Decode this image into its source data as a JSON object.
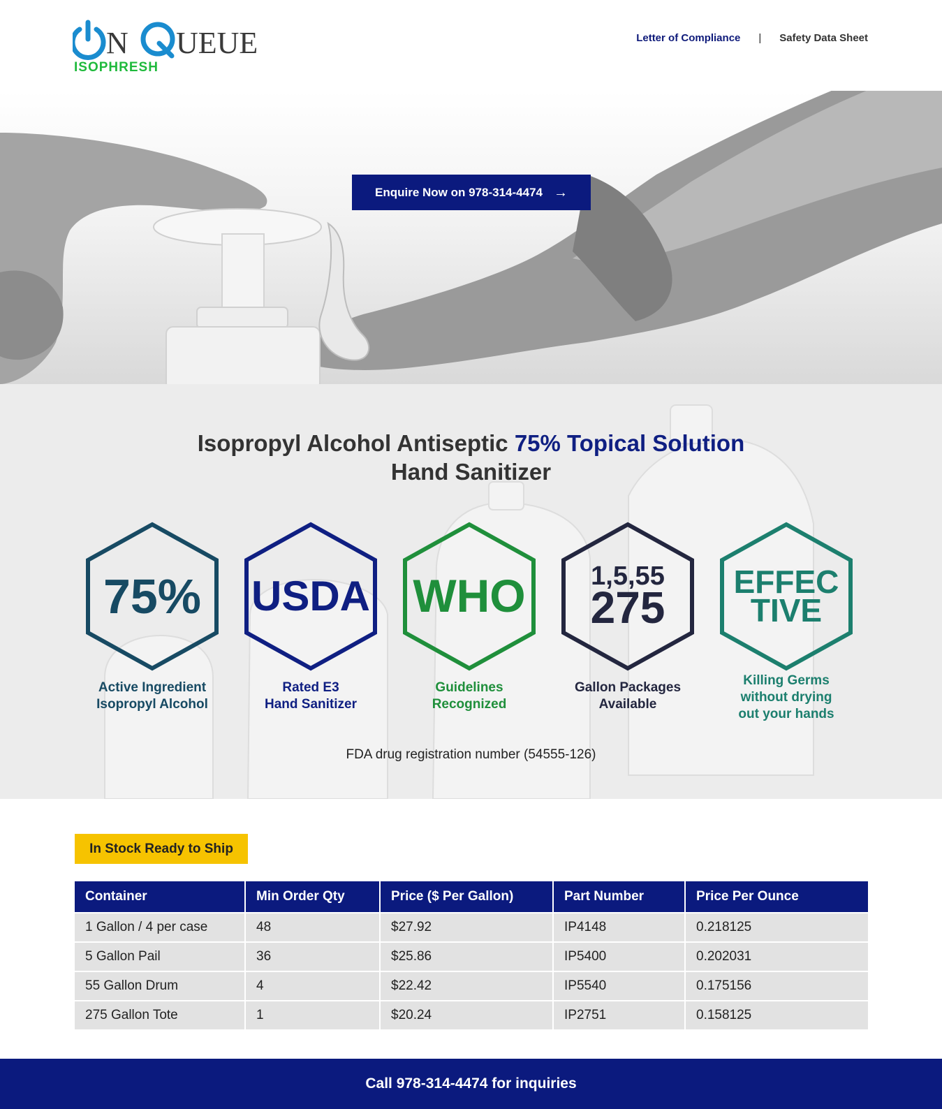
{
  "brand": {
    "logo_text": "ONQUEUE",
    "sub": "ISOPHRESH",
    "colors": {
      "blue": "#1a8ccf",
      "green": "#1fba3c",
      "navy": "#0b1a7e",
      "dark": "#3a3a3a"
    }
  },
  "nav": {
    "compliance": "Letter of Compliance",
    "separator": "|",
    "sds": "Safety Data Sheet"
  },
  "hero": {
    "cta_label": "Enquire Now on 978-314-4474",
    "cta_icon": "arrow-right-icon"
  },
  "headline": {
    "part1": "Isopropyl Alcohol Antiseptic ",
    "accent": "75% Topical Solution",
    "line2": "Hand Sanitizer"
  },
  "badges": [
    {
      "line1": "75%",
      "line2": "",
      "caption1": "Active Ingredient",
      "caption2": "Isopropyl Alcohol",
      "color": "#174a63"
    },
    {
      "line1": "USDA",
      "line2": "",
      "caption1": "Rated E3",
      "caption2": "Hand Sanitizer",
      "color": "#0f1f82"
    },
    {
      "line1": "WHO",
      "line2": "",
      "caption1": "Guidelines",
      "caption2": "Recognized",
      "color": "#1f8f3b"
    },
    {
      "line1": "1,5,55",
      "line2": "275",
      "caption1": "Gallon Packages",
      "caption2": "Available",
      "color": "#23263f"
    },
    {
      "line1": "EFFEC",
      "line2": "TIVE",
      "caption1": "Killing Germs",
      "caption2": "without drying",
      "caption3": "out your hands",
      "color": "#1c7f6e"
    }
  ],
  "fda": "FDA drug registration number (54555-126)",
  "stock_label": "In Stock Ready to Ship",
  "table": {
    "headers": [
      "Container",
      "Min Order Qty",
      "Price ($ Per Gallon)",
      "Part Number",
      "Price Per Ounce"
    ],
    "rows": [
      [
        "1 Gallon / 4 per case",
        "48",
        "$27.92",
        "IP4148",
        "0.218125"
      ],
      [
        "5 Gallon Pail",
        "36",
        "$25.86",
        "IP5400",
        "0.202031"
      ],
      [
        "55 Gallon Drum",
        "4",
        "$22.42",
        "IP5540",
        "0.175156"
      ],
      [
        "275 Gallon Tote",
        "1",
        "$20.24",
        "IP2751",
        "0.158125"
      ]
    ]
  },
  "footer": "Call 978-314-4474 for inquiries"
}
